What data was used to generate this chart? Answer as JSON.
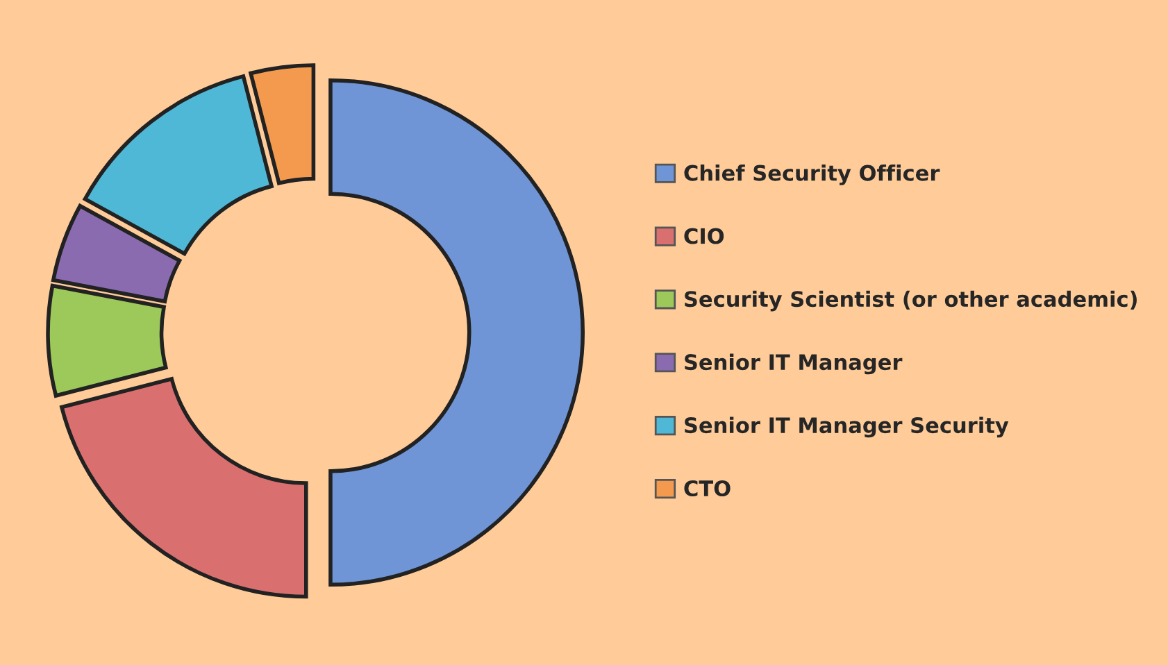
{
  "chart_data": {
    "type": "donut",
    "categories": [
      "Chief Security Officer",
      "CIO",
      "Security Scientist (or other academic)",
      "Senior IT Manager",
      "Senior IT Manager Security",
      "CTO"
    ],
    "values": [
      50,
      21,
      7,
      5,
      13,
      4
    ],
    "colors": [
      "#6f95d6",
      "#d9706f",
      "#9dc85a",
      "#8a6bb0",
      "#4fb8d6",
      "#f39a4e"
    ],
    "legend": "right"
  }
}
